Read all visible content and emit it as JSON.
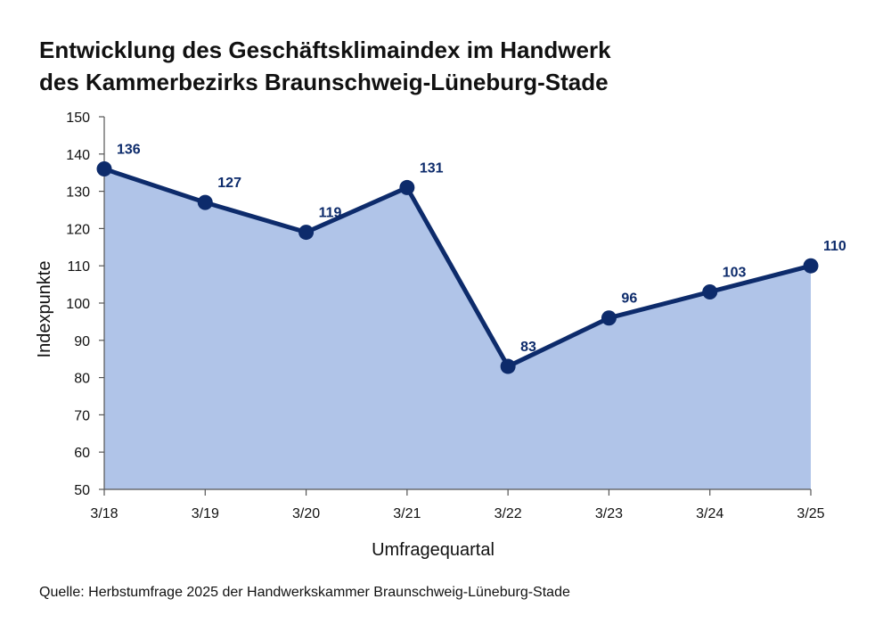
{
  "source_note": "Quelle: Herbstumfrage 2025 der Handwerkskammer Braunschweig-Lüneburg-Stade",
  "colors": {
    "line": "#0d2b6b",
    "area": "#b0c4e8",
    "axis": "#555555"
  },
  "chart_data": {
    "type": "area",
    "title_lines": [
      "Entwicklung des Geschäftsklimaindex im Handwerk",
      "des Kammerbezirks Braunschweig-Lüneburg-Stade"
    ],
    "xlabel": "Umfragequartal",
    "ylabel": "Indexpunkte",
    "categories": [
      "3/18",
      "3/19",
      "3/20",
      "3/21",
      "3/22",
      "3/23",
      "3/24",
      "3/25"
    ],
    "values": [
      136,
      127,
      119,
      131,
      83,
      96,
      103,
      110
    ],
    "data_labels": [
      "136",
      "127",
      "119",
      "131",
      "83",
      "96",
      "103",
      "110"
    ],
    "ylim": [
      50,
      150
    ],
    "yticks": [
      50,
      60,
      70,
      80,
      90,
      100,
      110,
      120,
      130,
      140,
      150
    ],
    "grid": false,
    "legend": "none"
  }
}
